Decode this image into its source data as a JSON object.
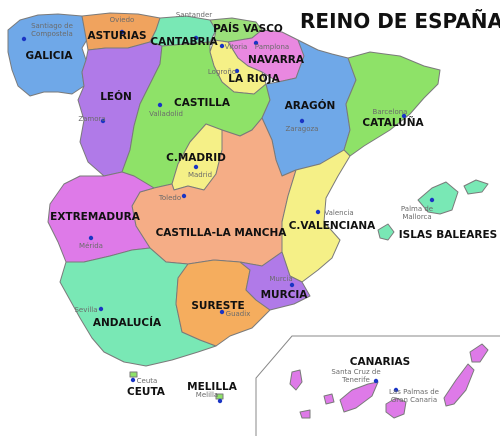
{
  "title": "REINO DE ESPAÑA",
  "regions": {
    "galicia": {
      "label": "GALICIA",
      "color": "#6fa8e8"
    },
    "asturias": {
      "label": "ASTURIAS",
      "color": "#f0a35e"
    },
    "cantabria": {
      "label": "CANTABRIA",
      "color": "#79e8b5"
    },
    "pais_vasco": {
      "label": "PAÍS VASCO",
      "color": "#9be07a"
    },
    "navarra": {
      "label": "NAVARRA",
      "color": "#e988e0"
    },
    "la_rioja": {
      "label": "LA RIOJA",
      "color": "#f5f087"
    },
    "leon": {
      "label": "LEÓN",
      "color": "#b07ae8"
    },
    "castilla": {
      "label": "CASTILLA",
      "color": "#8ee268"
    },
    "aragon": {
      "label": "ARAGÓN",
      "color": "#6fa8e8"
    },
    "cataluna": {
      "label": "CATALUÑA",
      "color": "#8ee268"
    },
    "c_madrid": {
      "label": "C.MADRID",
      "color": "#f5f087"
    },
    "extremadura": {
      "label": "EXTREMADURA",
      "color": "#de7ae8"
    },
    "castilla_la_mancha": {
      "label": "CASTILLA-LA MANCHA",
      "color": "#f5ad86"
    },
    "c_valenciana": {
      "label": "C.VALENCIANA",
      "color": "#f5f087"
    },
    "islas_baleares": {
      "label": "ISLAS BALEARES",
      "color": "#79e8b5"
    },
    "andalucia": {
      "label": "ANDALUCÍA",
      "color": "#79e8b5"
    },
    "sureste": {
      "label": "SURESTE",
      "color": "#f5ad5e"
    },
    "murcia": {
      "label": "MURCIA",
      "color": "#b07ae8"
    },
    "canarias": {
      "label": "CANARIAS",
      "color": "#de7ae8"
    },
    "ceuta": {
      "label": "CEUTA",
      "color": "#8ee268"
    },
    "melilla": {
      "label": "MELILLA",
      "color": "#8ee268"
    }
  },
  "cities": {
    "santiago_l1": "Santiago de",
    "santiago_l2": "Compostela",
    "oviedo": "Oviedo",
    "santander": "Santander",
    "vitoria": "Vitoria",
    "pamplona": "Pamplona",
    "logrono": "Logroño",
    "zamora": "Zamora",
    "valladolid": "Valladolid",
    "zaragoza": "Zaragoza",
    "barcelona": "Barcelona",
    "madrid": "Madrid",
    "toledo": "Toledo",
    "merida": "Mérida",
    "valencia": "Valencia",
    "palma_l1": "Palma de",
    "palma_l2": "Mallorca",
    "murcia": "Murcia",
    "sevilla": "Sevilla",
    "guadix": "Guadix",
    "ceuta": "Ceuta",
    "melilla": "Melilla",
    "santa_cruz_l1": "Santa Cruz de",
    "santa_cruz_l2": "Tenerife",
    "las_palmas_l1": "Las Palmas de",
    "las_palmas_l2": "Gran Canaria"
  },
  "colors": {
    "border": "#7a7a7a",
    "city_dot": "#1a35c4",
    "label_text": "#111111",
    "city_text": "#6b6b6b"
  }
}
